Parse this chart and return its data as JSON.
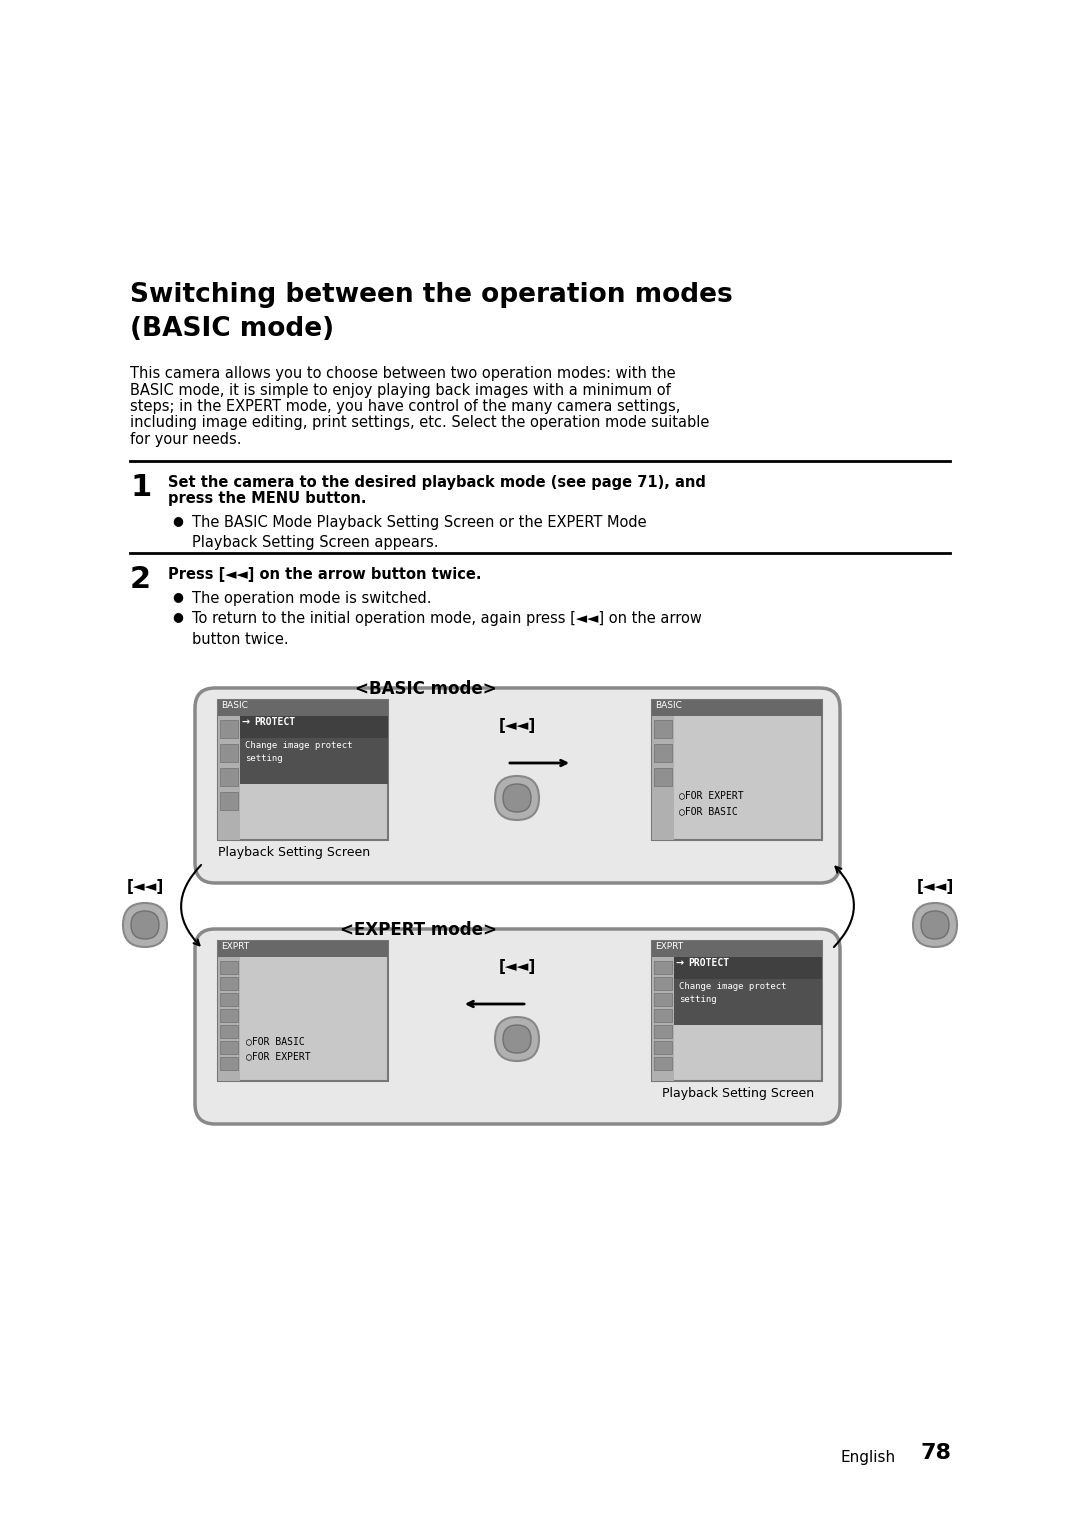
{
  "title_line1": "Switching between the operation modes",
  "title_line2": "(BASIC mode)",
  "title_fontsize": 19,
  "body_text_lines": [
    "This camera allows you to choose between two operation modes: with the",
    "BASIC mode, it is simple to enjoy playing back images with a minimum of",
    "steps; in the EXPERT mode, you have control of the many camera settings,",
    "including image editing, print settings, etc. Select the operation mode suitable",
    "for your needs."
  ],
  "body_fontsize": 10.5,
  "step1_num": "1",
  "step1_bold_line1": "Set the camera to the desired playback mode (see page 71), and",
  "step1_bold_line2": "press the MENU button.",
  "step1_bullet": "The BASIC Mode Playback Setting Screen or the EXPERT Mode\nPlayback Setting Screen appears.",
  "step2_num": "2",
  "step2_bold": "Press [◄◄] on the arrow button twice.",
  "step2_bullet1": "The operation mode is switched.",
  "step2_bullet2": "To return to the initial operation mode, again press [◄◄] on the arrow\nbutton twice.",
  "basic_mode_label": "<BASIC mode>",
  "expert_mode_label": "<EXPERT mode>",
  "playback_setting_screen": "Playback Setting Screen",
  "protect_label": "PROTECT",
  "change_image_protect_line1": "Change image protect",
  "change_image_protect_line2": "setting",
  "for_expert": "FOR EXPERT",
  "for_basic": "FOR BASIC",
  "for_basic2": "FOR BASIC",
  "for_expert2": "FOR EXPERT",
  "arrow_label": "[◄◄]",
  "footer_text": "English",
  "page_number": "78",
  "bg_color": "#ffffff",
  "text_color": "#000000",
  "screen_light_bg": "#c8c8c8",
  "screen_med_bg": "#b0b0b0",
  "screen_dark_bar": "#686868",
  "protect_dark": "#404040",
  "protect_med": "#505050",
  "outer_box_bg": "#e8e8e8",
  "outer_box_edge": "#888888",
  "sidebar_color": "#909090",
  "sidebar_edge": "#707070"
}
